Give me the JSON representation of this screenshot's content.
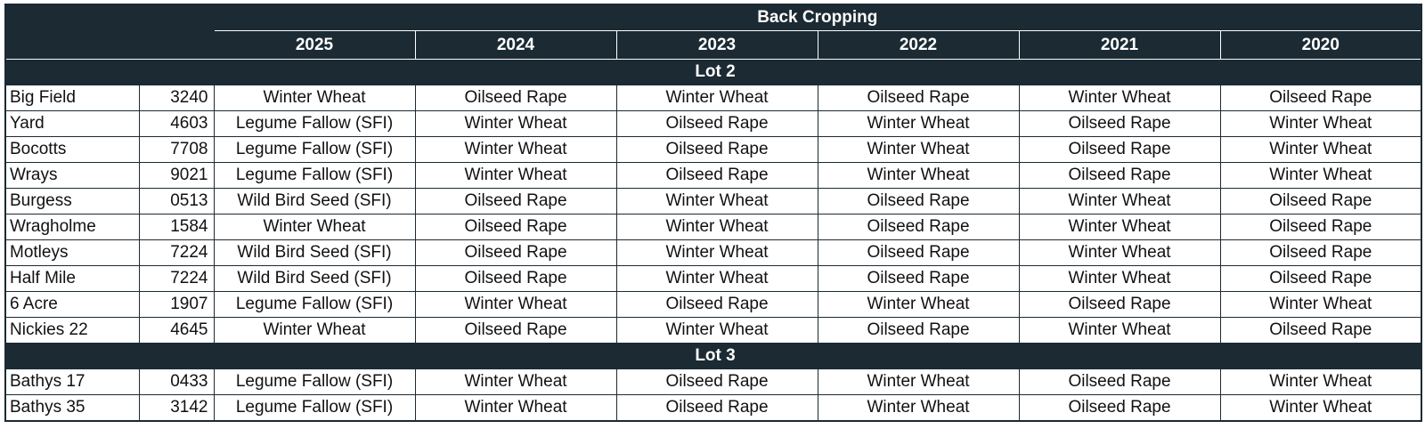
{
  "header": {
    "title": "Back Cropping",
    "years": [
      "2025",
      "2024",
      "2023",
      "2022",
      "2021",
      "2020"
    ]
  },
  "groups": [
    {
      "name": "Lot 2",
      "rows": [
        [
          "Big Field",
          "3240",
          "Winter Wheat",
          "Oilseed Rape",
          "Winter Wheat",
          "Oilseed Rape",
          "Winter Wheat",
          "Oilseed Rape"
        ],
        [
          "Yard",
          "4603",
          "Legume Fallow (SFI)",
          "Winter Wheat",
          "Oilseed Rape",
          "Winter Wheat",
          "Oilseed Rape",
          "Winter Wheat"
        ],
        [
          "Bocotts",
          "7708",
          "Legume Fallow (SFI)",
          "Winter Wheat",
          "Oilseed Rape",
          "Winter Wheat",
          "Oilseed Rape",
          "Winter Wheat"
        ],
        [
          "Wrays",
          "9021",
          "Legume Fallow (SFI)",
          "Winter Wheat",
          "Oilseed Rape",
          "Winter Wheat",
          "Oilseed Rape",
          "Winter Wheat"
        ],
        [
          "Burgess",
          "0513",
          "Wild Bird Seed (SFI)",
          "Oilseed Rape",
          "Winter Wheat",
          "Oilseed Rape",
          "Winter Wheat",
          "Oilseed Rape"
        ],
        [
          "Wragholme",
          "1584",
          "Winter Wheat",
          "Oilseed Rape",
          "Winter Wheat",
          "Oilseed Rape",
          "Winter Wheat",
          "Oilseed Rape"
        ],
        [
          "Motleys",
          "7224",
          "Wild Bird Seed (SFI)",
          "Oilseed Rape",
          "Winter Wheat",
          "Oilseed Rape",
          "Winter Wheat",
          "Oilseed Rape"
        ],
        [
          "Half Mile",
          "7224",
          "Wild Bird Seed (SFI)",
          "Oilseed Rape",
          "Winter Wheat",
          "Oilseed Rape",
          "Winter Wheat",
          "Oilseed Rape"
        ],
        [
          "6 Acre",
          "1907",
          "Legume Fallow (SFI)",
          "Winter Wheat",
          "Oilseed Rape",
          "Winter Wheat",
          "Oilseed Rape",
          "Winter Wheat"
        ],
        [
          "Nickies 22",
          "4645",
          "Winter Wheat",
          "Oilseed Rape",
          "Winter Wheat",
          "Oilseed Rape",
          "Winter Wheat",
          "Oilseed Rape"
        ]
      ]
    },
    {
      "name": "Lot 3",
      "rows": [
        [
          "Bathys 17",
          "0433",
          "Legume Fallow (SFI)",
          "Winter Wheat",
          "Oilseed Rape",
          "Winter Wheat",
          "Oilseed Rape",
          "Winter Wheat"
        ],
        [
          "Bathys 35",
          "3142",
          "Legume Fallow (SFI)",
          "Winter Wheat",
          "Oilseed Rape",
          "Winter Wheat",
          "Oilseed Rape",
          "Winter Wheat"
        ]
      ]
    }
  ]
}
